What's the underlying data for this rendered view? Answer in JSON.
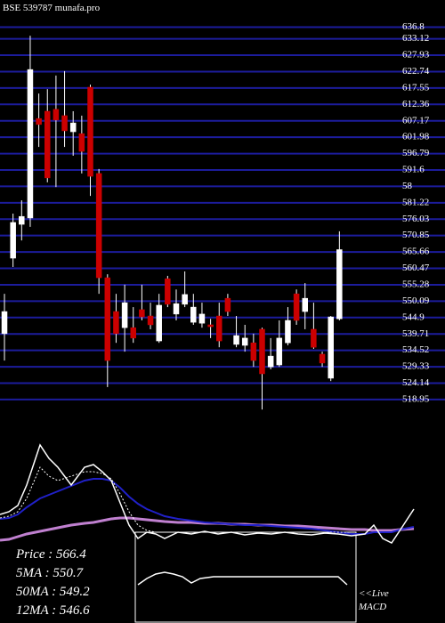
{
  "chart_data": [
    {
      "type": "candlestick",
      "title": "BSE 539787 munafa.pro",
      "ylim": [
        512,
        645.4
      ],
      "yticks": [
        636.8,
        633.12,
        627.93,
        622.74,
        617.55,
        612.36,
        607.17,
        601.98,
        596.79,
        591.6,
        {
          "value": 586.41,
          "label": "58"
        },
        581.22,
        576.03,
        570.85,
        565.66,
        560.47,
        555.28,
        550.09,
        544.9,
        539.71,
        534.52,
        529.33,
        524.14,
        518.95
      ],
      "grid": true,
      "grid_color": "#1c1c9c",
      "up_color": "#ffffff",
      "down_color": "#cc0000",
      "wick_color": "#ffffff",
      "open": [
        539.8,
        563.7,
        574.4,
        576.4,
        607.9,
        610.2,
        610.8,
        608.8,
        603.7,
        603.1,
        617.8,
        590.5,
        557.5,
        546.8,
        541.7,
        541.7,
        547.4,
        545.4,
        537.5,
        557.2,
        546.0,
        549.1,
        543.4,
        543.1,
        542.6,
        545.4,
        551.0,
        536.4,
        536.1,
        536.9,
        541.2,
        529.3,
        529.9,
        536.9,
        552.4,
        546.8,
        541.2,
        533.3,
        525.7,
        544.5
      ],
      "high": [
        552.4,
        577.8,
        582.0,
        634.1,
        615.8,
        617.2,
        621.5,
        622.9,
        610.2,
        608.8,
        618.6,
        591.9,
        558.6,
        552.4,
        555.3,
        548.2,
        555.3,
        549.6,
        552.4,
        558.1,
        553.8,
        559.5,
        552.4,
        549.6,
        544.5,
        549.6,
        552.4,
        545.4,
        542.6,
        539.8,
        541.7,
        538.4,
        544.0,
        548.2,
        553.8,
        555.8,
        549.6,
        534.1,
        545.4,
        572.2
      ],
      "low": [
        531.3,
        560.9,
        569.3,
        573.6,
        598.9,
        587.7,
        586.2,
        598.9,
        596.1,
        590.5,
        583.4,
        552.4,
        522.9,
        536.9,
        534.1,
        536.9,
        544.0,
        541.2,
        536.9,
        548.2,
        544.0,
        548.2,
        542.6,
        541.7,
        538.4,
        535.5,
        545.4,
        535.5,
        534.1,
        529.3,
        515.8,
        528.5,
        529.3,
        536.1,
        542.6,
        541.2,
        535.0,
        529.3,
        524.8,
        544.0
      ],
      "close": [
        546.8,
        575.0,
        576.9,
        623.4,
        606.0,
        589.1,
        607.4,
        604.0,
        606.5,
        597.5,
        589.6,
        557.5,
        531.3,
        539.8,
        549.6,
        538.4,
        545.1,
        542.6,
        548.8,
        549.1,
        549.3,
        552.2,
        548.2,
        546.0,
        542.0,
        537.5,
        546.8,
        539.2,
        538.4,
        531.3,
        527.1,
        532.7,
        538.4,
        544.0,
        544.0,
        551.0,
        535.5,
        530.5,
        545.1,
        566.4
      ]
    },
    {
      "type": "line",
      "xlim": [
        0,
        500
      ],
      "ylim": [
        0,
        120
      ],
      "x": [
        0,
        10,
        20,
        30,
        45,
        55,
        65,
        80,
        95,
        105,
        115,
        125,
        135,
        145,
        155,
        165,
        175,
        185,
        200,
        215,
        230,
        245,
        260,
        275,
        290,
        305,
        320,
        335,
        350,
        365,
        380,
        395,
        410,
        420,
        430,
        440,
        450,
        465
      ],
      "series": [
        {
          "color": "#c080d0",
          "width": 3,
          "values": [
            3,
            4,
            7,
            10,
            13,
            15,
            17,
            20,
            22,
            23,
            25,
            27,
            28,
            28,
            27,
            26,
            25,
            24,
            23,
            23,
            22,
            22,
            21,
            21,
            20,
            20,
            19,
            19,
            18,
            17,
            16,
            15,
            15,
            14,
            14,
            14,
            15,
            16
          ]
        },
        {
          "color": "#2020c8",
          "width": 2,
          "values": [
            27,
            28,
            32,
            40,
            50,
            54,
            58,
            64,
            70,
            72,
            72,
            70,
            62,
            52,
            44,
            38,
            34,
            30,
            27,
            25,
            23,
            22,
            21,
            20,
            20,
            19,
            18,
            17,
            16,
            14,
            12,
            10,
            10,
            12,
            12,
            12,
            15,
            18
          ]
        },
        {
          "color": "#ffffff",
          "width": 1,
          "dash": true,
          "values": [
            28,
            30,
            35,
            50,
            85,
            75,
            70,
            75,
            80,
            80,
            78,
            72,
            55,
            35,
            20,
            14,
            12,
            12,
            12,
            12,
            12,
            12,
            12,
            12,
            12,
            12,
            12,
            12,
            12,
            12,
            12,
            12,
            null,
            null,
            null,
            null,
            null,
            null
          ]
        },
        {
          "color": "#ffffff",
          "width": 1.5,
          "values": [
            32,
            35,
            42,
            65,
            110,
            95,
            85,
            65,
            85,
            88,
            80,
            70,
            45,
            20,
            5,
            12,
            10,
            5,
            12,
            10,
            13,
            10,
            12,
            9,
            11,
            10,
            12,
            10,
            9,
            11,
            10,
            8,
            10,
            20,
            5,
            0,
            15,
            38
          ]
        }
      ],
      "annotations": [
        "Price   : 566.4",
        "5MA   : 550.7",
        "50MA : 549.2",
        "12MA : 546.6"
      ]
    },
    {
      "type": "line",
      "xlim": [
        0,
        500
      ],
      "ylim": [
        0,
        100
      ],
      "x": [
        155,
        165,
        175,
        185,
        195,
        205,
        215,
        225,
        240,
        260,
        280,
        300,
        320,
        340,
        360,
        380,
        390
      ],
      "series": [
        {
          "color": "#ffffff",
          "width": 1.5,
          "values": [
            43,
            50,
            55,
            57,
            55,
            52,
            45,
            50,
            52,
            52,
            52,
            52,
            52,
            52,
            52,
            52,
            43
          ]
        }
      ],
      "annotations": [
        "<<Live",
        "MACD"
      ]
    }
  ]
}
